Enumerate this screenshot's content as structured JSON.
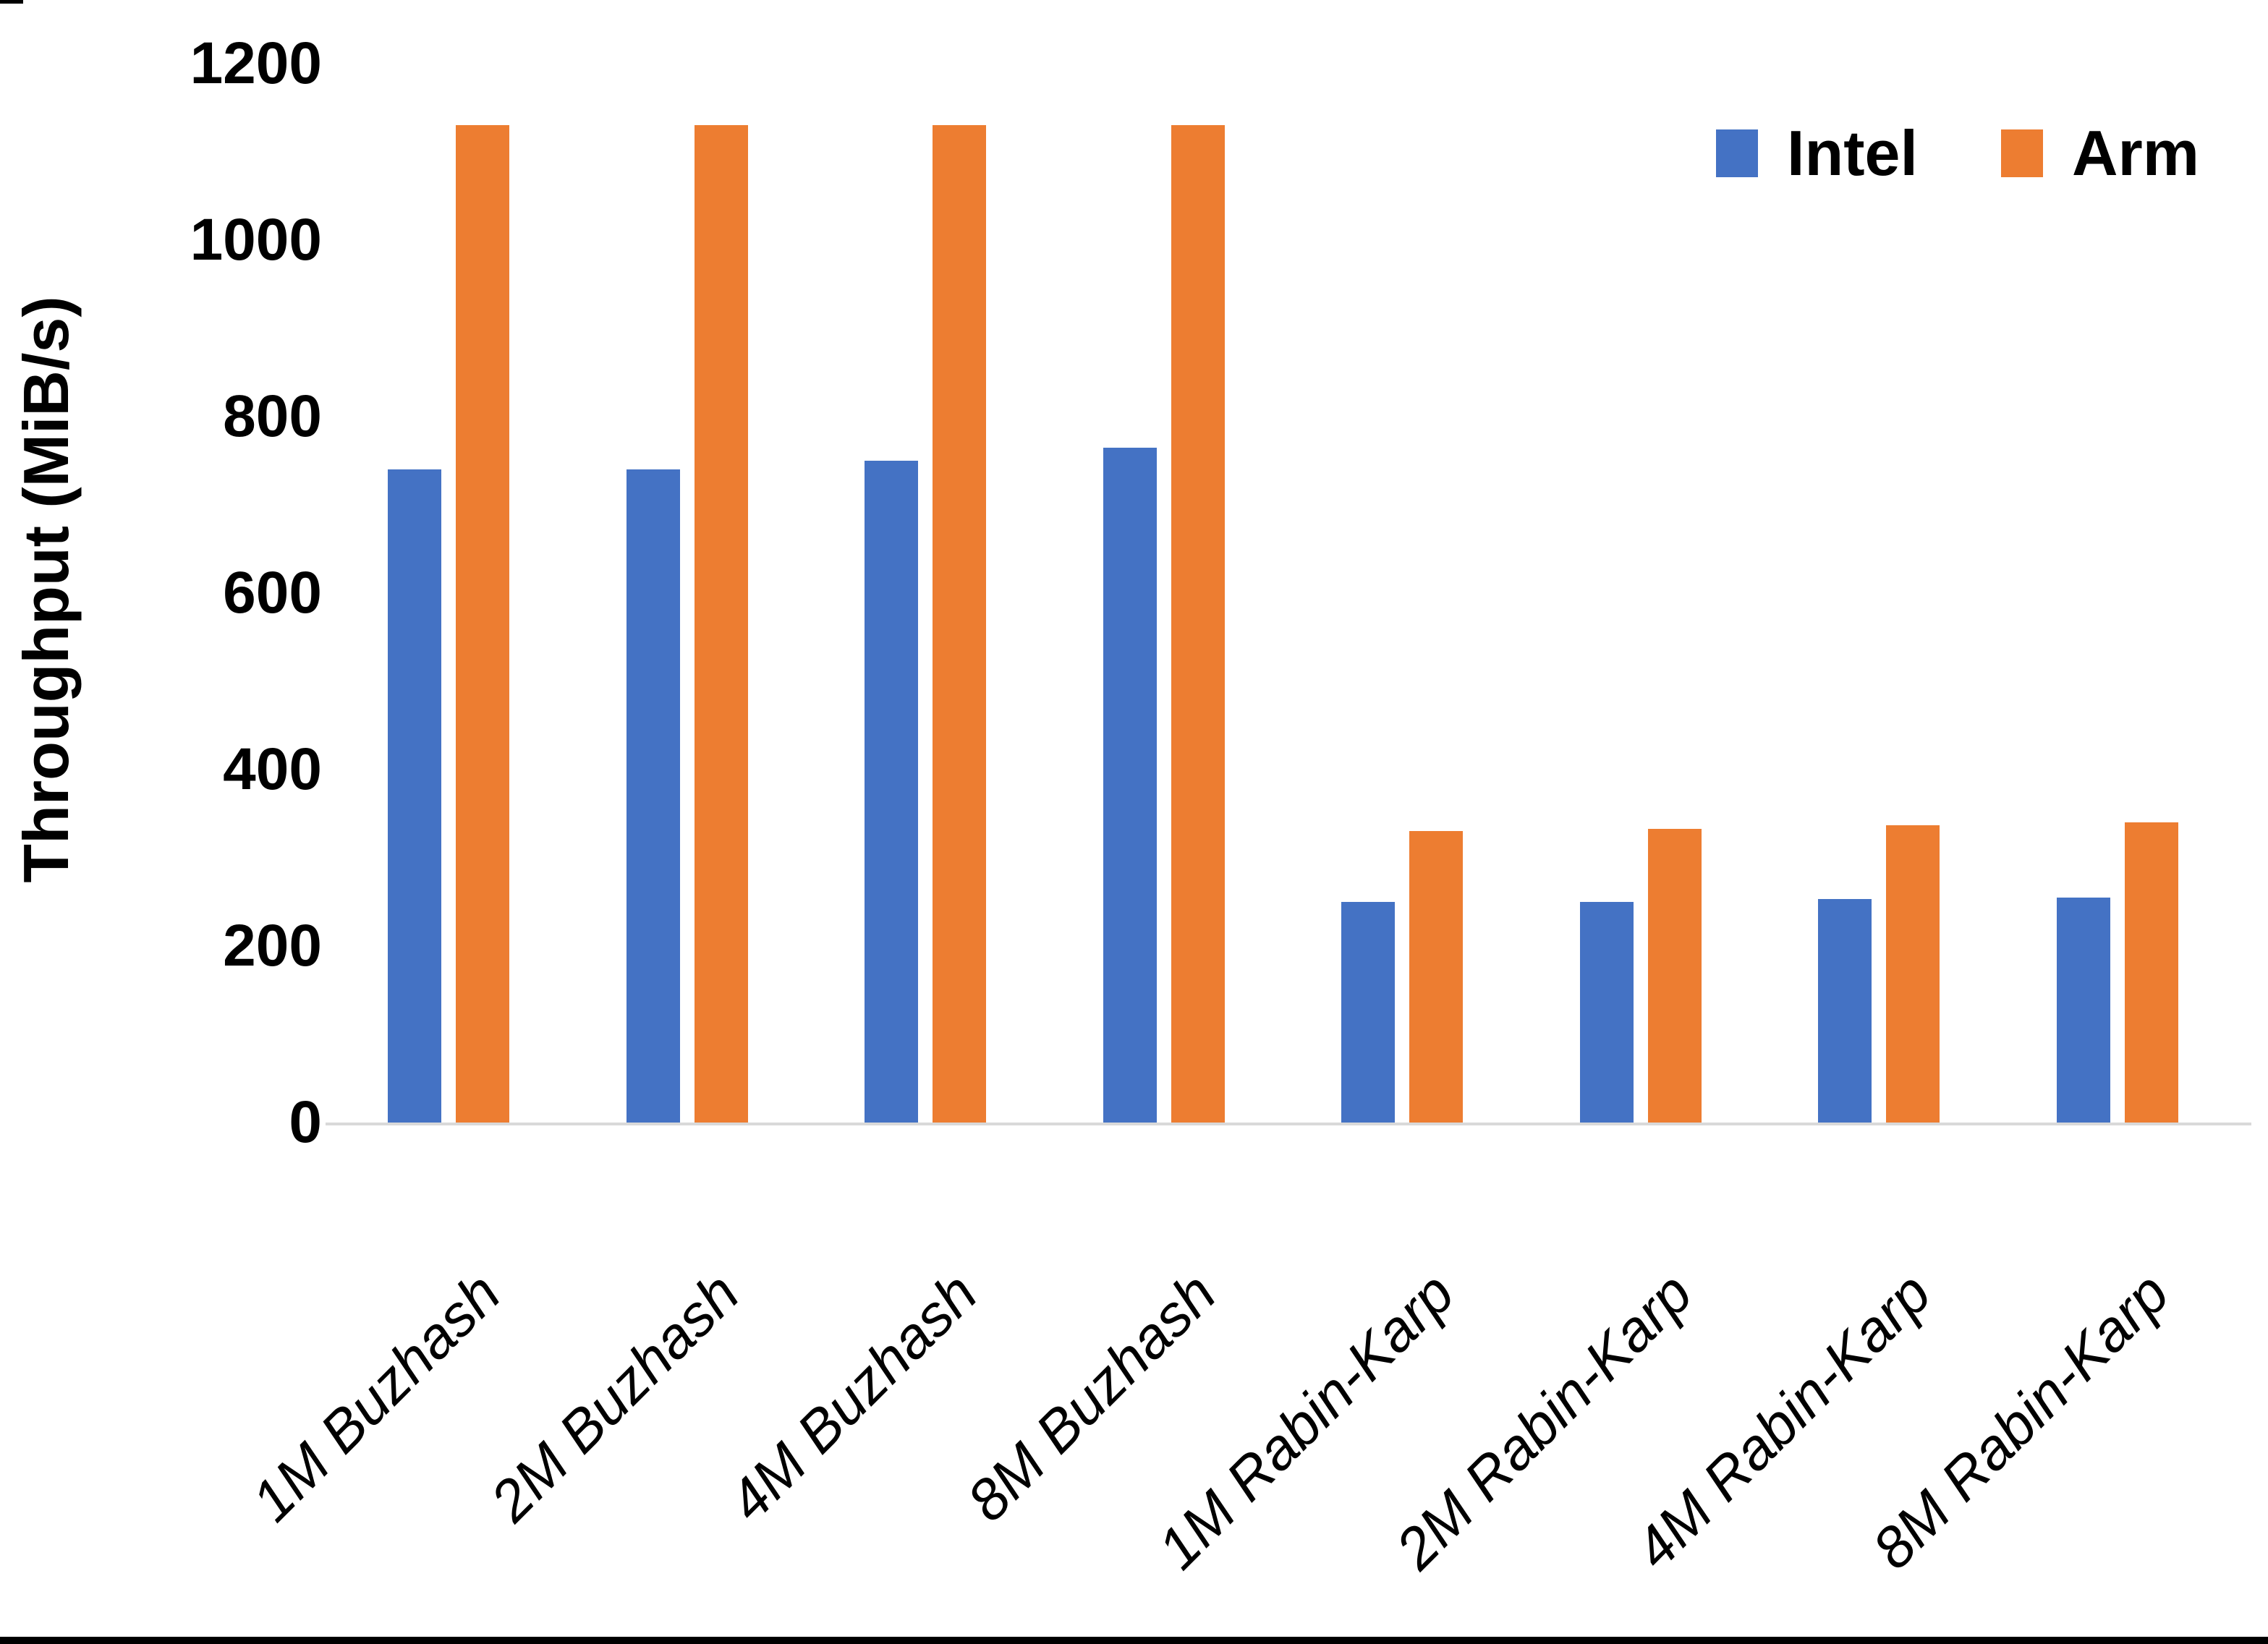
{
  "chart_data": {
    "type": "bar",
    "title": "",
    "xlabel": "",
    "ylabel": "Throughput (MiB/s)",
    "ylim": [
      0,
      1200
    ],
    "yticks": [
      0,
      200,
      400,
      600,
      800,
      1000,
      1200
    ],
    "grid": false,
    "legend_position": "top-right",
    "axis_line_color": "#d9d9d9",
    "text_color": "#000000",
    "categories": [
      "1M Buzhash",
      "2M Buzhash",
      "4M Buzhash",
      "8M Buzhash",
      "1M Rabin-Karp",
      "2M Rabin-Karp",
      "4M Rabin-Karp",
      "8M Rabin-Karp"
    ],
    "series": [
      {
        "name": "Intel",
        "color": "#4472C4",
        "values": [
          740,
          740,
          750,
          765,
          250,
          250,
          253,
          255
        ]
      },
      {
        "name": "Arm",
        "color": "#ED7D31",
        "values": [
          1130,
          1130,
          1130,
          1130,
          330,
          333,
          337,
          340
        ]
      }
    ]
  }
}
